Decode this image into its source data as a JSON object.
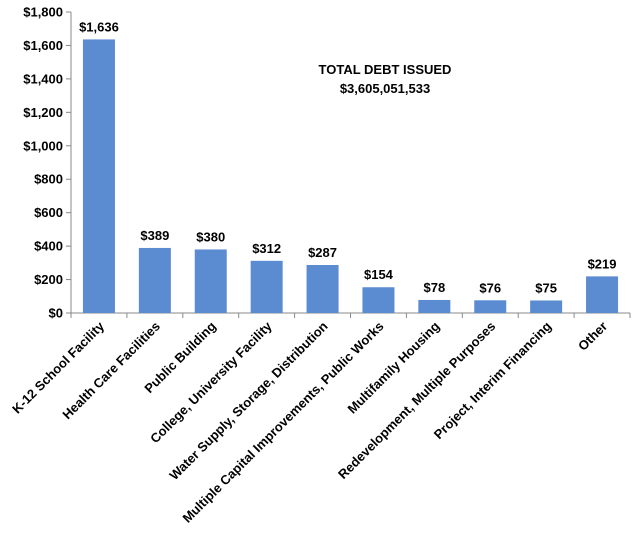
{
  "chart_data": {
    "type": "bar",
    "title": "",
    "xlabel": "",
    "ylabel": "",
    "categories": [
      "K-12 School Facility",
      "Health Care Facilities",
      "Public Building",
      "College, University Facility",
      "Water Supply, Storage, Distribution",
      "Multiple Capital Improvements, Public Works",
      "Multifamily Housing",
      "Redevelopment, Multiple Purposes",
      "Project, Interim Financing",
      "Other"
    ],
    "values": [
      1636,
      389,
      380,
      312,
      287,
      154,
      78,
      76,
      75,
      219
    ],
    "data_labels": [
      "$1,636",
      "$389",
      "$380",
      "$312",
      "$287",
      "$154",
      "$78",
      "$76",
      "$75",
      "$219"
    ],
    "ylim": [
      0,
      1800
    ],
    "y_ticks": [
      0,
      200,
      400,
      600,
      800,
      1000,
      1200,
      1400,
      1600,
      1800
    ],
    "y_tick_labels": [
      "$0",
      "$200",
      "$400",
      "$600",
      "$800",
      "$1,000",
      "$1,200",
      "$1,400",
      "$1,600",
      "$1,800"
    ],
    "grid": false,
    "legend": "none",
    "bar_color": "#5b8bd0",
    "annotation": {
      "line1": "TOTAL DEBT ISSUED",
      "line2": "$3,605,051,533"
    }
  }
}
